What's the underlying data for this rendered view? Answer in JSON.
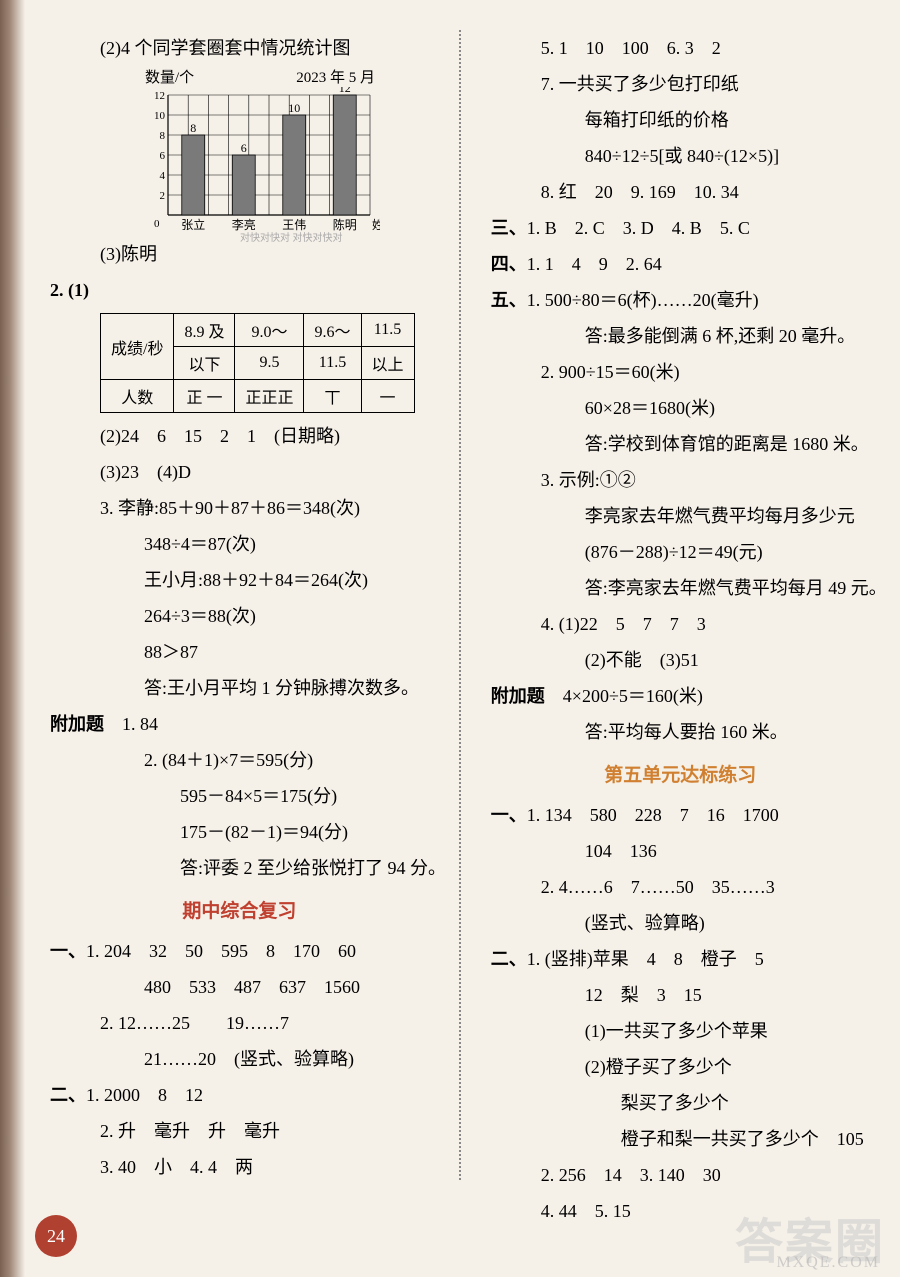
{
  "left": {
    "l1": "(2)4 个同学套圈套中情况统计图",
    "chart": {
      "yLabel": "数量/个",
      "date": "2023 年 5 月",
      "yTicks": [
        2,
        4,
        6,
        8,
        10,
        12
      ],
      "categories": [
        "张立",
        "李亮",
        "王伟",
        "陈明"
      ],
      "values": [
        8,
        6,
        10,
        12
      ],
      "xLabel": "姓名",
      "barColor": "#7a7a7a",
      "gridColor": "#000",
      "bgColor": "#f5f0e8"
    },
    "l3": "(3)陈明",
    "wm_small": "对快对快对\n对快对快对",
    "l2_1": "2. (1)",
    "table": {
      "h0": "成绩/秒",
      "h1a": "8.9 及",
      "h1b": "以下",
      "h2a": "9.0～",
      "h2b": "9.5",
      "h3a": "9.6～",
      "h3b": "11.5",
      "h4a": "11.5",
      "h4b": "以上",
      "r2h": "人数",
      "tally1": "正 一",
      "tally2": "正正正",
      "tally3": "丅",
      "tally4": "一"
    },
    "l2_2": "(2)24　6　15　2　1　(日期略)",
    "l2_3": "(3)23　(4)D",
    "l3_1": "3. 李静:85＋90＋87＋86＝348(次)",
    "l3_2": "348÷4＝87(次)",
    "l3_3": "王小月:88＋92＋84＝264(次)",
    "l3_4": "264÷3＝88(次)",
    "l3_5": "88＞87",
    "l3_6": "答:王小月平均 1 分钟脉搏次数多。",
    "fujiati": "附加题",
    "f1": "1. 84",
    "f2_1": "2. (84＋1)×7＝595(分)",
    "f2_2": "595－84×5＝175(分)",
    "f2_3": "175－(82－1)＝94(分)",
    "f2_4": "答:评委 2 至少给张悦打了 94 分。",
    "mid_heading": "期中综合复习",
    "s1_label": "一、",
    "s1_1a": "1. 204　32　50　595　8　170　60",
    "s1_1b": "480　533　487　637　1560",
    "s1_2a": "2. 12……25　　19……7",
    "s1_2b": "21……20　(竖式、验算略)",
    "s2_label": "二、",
    "s2_1": "1. 2000　8　12",
    "s2_2": "2. 升　毫升　升　毫升",
    "s2_3": "3. 40　小　4. 4　两"
  },
  "right": {
    "r5": "5. 1　10　100　6. 3　2",
    "r7a": "7. 一共买了多少包打印纸",
    "r7b": "每箱打印纸的价格",
    "r7c": "840÷12÷5[或 840÷(12×5)]",
    "r8": "8. 红　20　9. 169　10. 34",
    "s3_label": "三、",
    "s3": "1. B　2. C　3. D　4. B　5. C",
    "s4_label": "四、",
    "s4": "1. 1　4　9　2. 64",
    "s5_label": "五、",
    "s5_1a": "1. 500÷80＝6(杯)……20(毫升)",
    "s5_1b": "答:最多能倒满 6 杯,还剩 20 毫升。",
    "s5_2a": "2. 900÷15＝60(米)",
    "s5_2b": "60×28＝1680(米)",
    "s5_2c": "答:学校到体育馆的距离是 1680 米。",
    "s5_3a": "3. 示例:①②",
    "s5_3b": "李亮家去年燃气费平均每月多少元",
    "s5_3c": "(876－288)÷12＝49(元)",
    "s5_3d": "答:李亮家去年燃气费平均每月 49 元。",
    "s5_4a": "4. (1)22　5　7　7　3",
    "s5_4b": "(2)不能　(3)51",
    "fujia_label": "附加题",
    "fujia1": "4×200÷5＝160(米)",
    "fujia2": "答:平均每人要抬 160 米。",
    "unit5_heading": "第五单元达标练习",
    "u1_label": "一、",
    "u1_1a": "1. 134　580　228　7　16　1700",
    "u1_1b": "104　136",
    "u1_2a": "2. 4……6　7……50　35……3",
    "u1_2b": "(竖式、验算略)",
    "u2_label": "二、",
    "u2_1a": "1. (竖排)苹果　4　8　橙子　5",
    "u2_1b": "12　梨　3　15",
    "u2_1c": "(1)一共买了多少个苹果",
    "u2_1d": "(2)橙子买了多少个",
    "u2_1e": "梨买了多少个",
    "u2_1f": "橙子和梨一共买了多少个　105",
    "u2_2": "2. 256　14　3. 140　30",
    "u2_4": "4. 44　5. 15"
  },
  "page_num": "24",
  "wm_big": "答案圈",
  "wm_url": "MXQE.COM"
}
